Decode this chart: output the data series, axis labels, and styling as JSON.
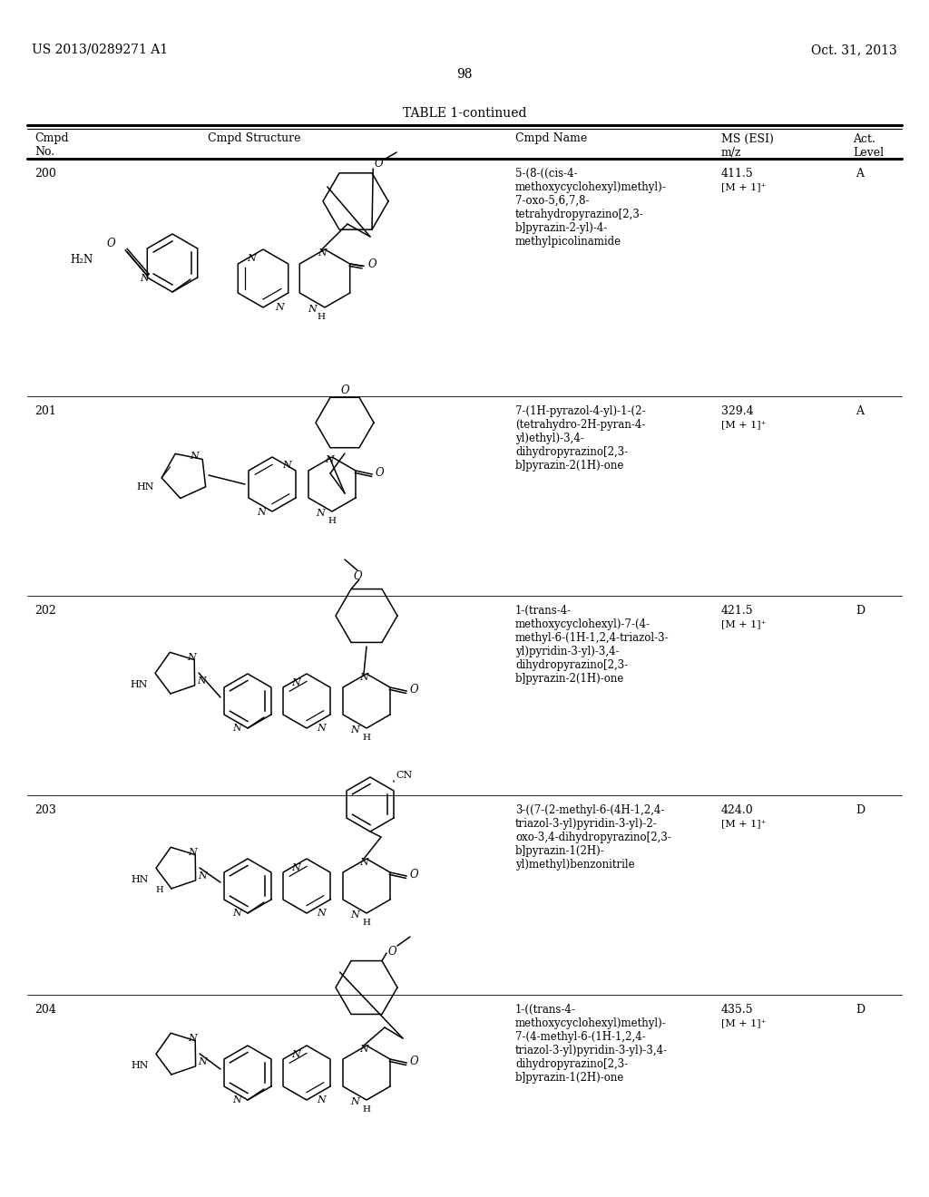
{
  "patent_number": "US 2013/0289271 A1",
  "patent_date": "Oct. 31, 2013",
  "page_number": "98",
  "table_title": "TABLE 1-continued",
  "col_headers": [
    "Cmpd\nNo.",
    "Cmpd Structure",
    "Cmpd Name",
    "MS (ESI)\nm/z",
    "Act.\nLevel"
  ],
  "rows": [
    {
      "no": "200",
      "name": "5-(8-((cis-4-\nmethoxycyclohexyl)methyl)-\n7-oxo-5,6,7,8-\ntetrahydropyrazino[2,3-\nb]pyrazin-2-yl)-4-\nmethylpicolinamide",
      "ms": "411.5",
      "ms2": "[M + 1]⁺",
      "act": "A"
    },
    {
      "no": "201",
      "name": "7-(1H-pyrazol-4-yl)-1-(2-\n(tetrahydro-2H-pyran-4-\nyl)ethyl)-3,4-\ndihydropyrazino[2,3-\nb]pyrazin-2(1H)-one",
      "ms": "329.4",
      "ms2": "[M + 1]⁺",
      "act": "A"
    },
    {
      "no": "202",
      "name": "1-(trans-4-\nmethoxycyclohexyl)-7-(4-\nmethyl-6-(1H-1,2,4-triazol-3-\nyl)pyridin-3-yl)-3,4-\ndihydropyrazino[2,3-\nb]pyrazin-2(1H)-one",
      "ms": "421.5",
      "ms2": "[M + 1]⁺",
      "act": "D"
    },
    {
      "no": "203",
      "name": "3-((7-(2-methyl-6-(4H-1,2,4-\ntriazol-3-yl)pyridin-3-yl)-2-\noxo-3,4-dihydropyrazino[2,3-\nb]pyrazin-1(2H)-\nyl)methyl)benzonitrile",
      "ms": "424.0",
      "ms2": "[M + 1]⁺",
      "act": "D"
    },
    {
      "no": "204",
      "name": "1-((trans-4-\nmethoxycyclohexyl)methyl)-\n7-(4-methyl-6-(1H-1,2,4-\ntriazol-3-yl)pyridin-3-yl)-3,4-\ndihydropyrazino[2,3-\nb]pyrazin-1(2H)-one",
      "ms": "435.5",
      "ms2": "[M + 1]⁺",
      "act": "D"
    }
  ]
}
